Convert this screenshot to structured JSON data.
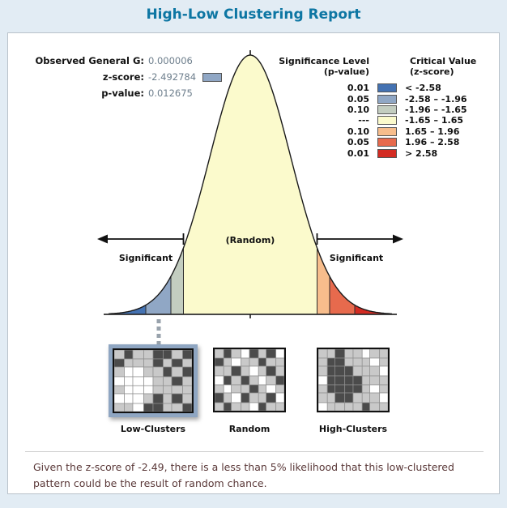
{
  "title": "High-Low Clustering Report",
  "stats": {
    "observed_label": "Observed General G:",
    "observed_value": "0.000006",
    "zscore_label": "z-score:",
    "zscore_value": "-2.492784",
    "zscore_swatch_color": "#90a7c5",
    "pvalue_label": "p-value:",
    "pvalue_value": "0.012675"
  },
  "legend": {
    "sig_header": "Significance Level",
    "sig_subheader": "(p-value)",
    "crit_header": "Critical Value",
    "crit_subheader": "(z-score)",
    "rows": [
      {
        "p": "0.01",
        "z": "< -2.58",
        "color": "#4472b2"
      },
      {
        "p": "0.05",
        "z": "-2.58 – -1.96",
        "color": "#90a7c5"
      },
      {
        "p": "0.10",
        "z": "-1.96 – -1.65",
        "color": "#c3cdc0"
      },
      {
        "p": "---",
        "z": "-1.65 – 1.65",
        "color": "#fbfacc"
      },
      {
        "p": "0.10",
        "z": "1.65 – 1.96",
        "color": "#f7bd8c"
      },
      {
        "p": "0.05",
        "z": "1.96 – 2.58",
        "color": "#e76a4d"
      },
      {
        "p": "0.01",
        "z": "> 2.58",
        "color": "#d32b22"
      }
    ]
  },
  "curve_labels": {
    "random": "(Random)",
    "significant_left": "Significant",
    "significant_right": "Significant"
  },
  "chart_data": {
    "type": "area",
    "title": "High-Low Clustering Report",
    "description": "Standard normal distribution bell curve split into significance bands by critical z-score values",
    "x_axis": "z-score",
    "x_range_z": [
      -3.5,
      3.5
    ],
    "band_boundaries_z": [
      -2.58,
      -1.96,
      -1.65,
      1.65,
      1.96,
      2.58
    ],
    "bands": [
      {
        "z_range": "< -2.58",
        "p_value": "0.01",
        "color": "#4472b2"
      },
      {
        "z_range": "-2.58 – -1.96",
        "p_value": "0.05",
        "color": "#90a7c5"
      },
      {
        "z_range": "-1.96 – -1.65",
        "p_value": "0.10",
        "color": "#c3cdc0"
      },
      {
        "z_range": "-1.65 – 1.65",
        "p_value": "---",
        "color": "#fbfacc"
      },
      {
        "z_range": "1.65 – 1.96",
        "p_value": "0.10",
        "color": "#f7bd8c"
      },
      {
        "z_range": "1.96 – 2.58",
        "p_value": "0.05",
        "color": "#e76a4d"
      },
      {
        "z_range": "> 2.58",
        "p_value": "0.01",
        "color": "#d32b22"
      }
    ],
    "observed": {
      "general_g": 6e-06,
      "z_score": -2.492784,
      "p_value": 0.012675
    },
    "observed_marker_band": "-2.58 – -1.96",
    "annotations": [
      "(Random)",
      "Significant",
      "Significant"
    ],
    "legend_position": "top-right"
  },
  "thumbnails": {
    "cell_colors": {
      "0": "#ffffff",
      "1": "#c9c9c9",
      "2": "#4b4b4b"
    },
    "items": [
      {
        "label": "Low-Clusters",
        "selected": true,
        "grid": [
          "12112212",
          "21112121",
          "10011212",
          "00001121",
          "10001111",
          "00012121",
          "11022112"
        ]
      },
      {
        "label": "Random",
        "selected": false,
        "grid": [
          "12102120",
          "21011211",
          "11210121",
          "02121012",
          "10112101",
          "21021120",
          "12110211"
        ]
      },
      {
        "label": "High-Clusters",
        "selected": false,
        "grid": [
          "11211011",
          "12211101",
          "12221110",
          "02222111",
          "12222101",
          "11221110",
          "01111211"
        ]
      }
    ]
  },
  "summary": {
    "text": "Given the z-score of -2.49, there is a less than 5% likelihood that this low-clustered pattern could be the result of random chance."
  },
  "colors": {
    "page_bg": "#e2ecf4",
    "panel_bg": "#ffffff",
    "panel_border": "#b9c2ca",
    "title": "#0d76a3",
    "label_text": "#111111",
    "value_text": "#6d7e8c",
    "summary_text": "#5a3838",
    "selected_frame": "#8fa6c2",
    "curve_outline": "#1a1a1a"
  }
}
